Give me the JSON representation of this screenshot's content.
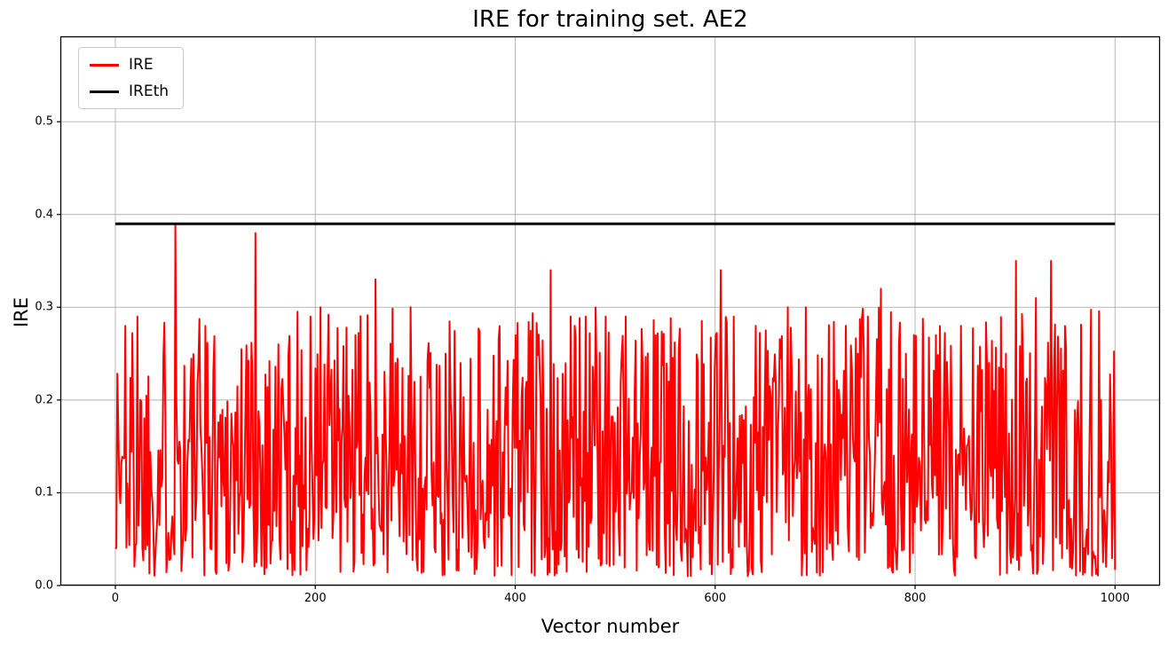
{
  "figure": {
    "title": "IRE for training set. AE2",
    "xlabel": "Vector number",
    "ylabel": "IRE"
  },
  "chart_data": {
    "type": "line",
    "title": "IRE for training set. AE2",
    "xlabel": "Vector number",
    "ylabel": "IRE",
    "xlim": [
      -55,
      1045
    ],
    "ylim": [
      0.0,
      0.592
    ],
    "xticks": [
      0,
      200,
      400,
      600,
      800,
      1000
    ],
    "yticks": [
      0.0,
      0.1,
      0.2,
      0.3,
      0.4,
      0.5
    ],
    "grid": true,
    "grid_color": "#b0b0b0",
    "axes_edge_color": "#000000",
    "legend": {
      "position": "upper-left",
      "entries": [
        {
          "label": "IRE",
          "color": "#ff0000"
        },
        {
          "label": "IREth",
          "color": "#000000"
        }
      ]
    },
    "series": [
      {
        "name": "IRE",
        "color": "#ff0000",
        "style": "noisy-line",
        "line_width": 2,
        "n_points": 1000,
        "x_range": [
          0,
          1000
        ],
        "baseline_min": 0.01,
        "baseline_max": 0.3,
        "approx_mean": 0.14,
        "seed": 1337,
        "notable_peaks": [
          {
            "x": 10,
            "y": 0.28
          },
          {
            "x": 22,
            "y": 0.29
          },
          {
            "x": 60,
            "y": 0.39
          },
          {
            "x": 90,
            "y": 0.28
          },
          {
            "x": 140,
            "y": 0.38
          },
          {
            "x": 163,
            "y": 0.26
          },
          {
            "x": 195,
            "y": 0.29
          },
          {
            "x": 205,
            "y": 0.3
          },
          {
            "x": 240,
            "y": 0.27
          },
          {
            "x": 260,
            "y": 0.33
          },
          {
            "x": 280,
            "y": 0.24
          },
          {
            "x": 330,
            "y": 0.25
          },
          {
            "x": 345,
            "y": 0.24
          },
          {
            "x": 400,
            "y": 0.27
          },
          {
            "x": 435,
            "y": 0.34
          },
          {
            "x": 455,
            "y": 0.29
          },
          {
            "x": 470,
            "y": 0.29
          },
          {
            "x": 490,
            "y": 0.29
          },
          {
            "x": 510,
            "y": 0.29
          },
          {
            "x": 540,
            "y": 0.27
          },
          {
            "x": 605,
            "y": 0.34
          },
          {
            "x": 618,
            "y": 0.29
          },
          {
            "x": 640,
            "y": 0.28
          },
          {
            "x": 672,
            "y": 0.3
          },
          {
            "x": 690,
            "y": 0.3
          },
          {
            "x": 730,
            "y": 0.28
          },
          {
            "x": 752,
            "y": 0.29
          },
          {
            "x": 765,
            "y": 0.32
          },
          {
            "x": 790,
            "y": 0.25
          },
          {
            "x": 820,
            "y": 0.27
          },
          {
            "x": 845,
            "y": 0.28
          },
          {
            "x": 873,
            "y": 0.24
          },
          {
            "x": 900,
            "y": 0.35
          },
          {
            "x": 920,
            "y": 0.31
          },
          {
            "x": 935,
            "y": 0.35
          },
          {
            "x": 985,
            "y": 0.2
          }
        ]
      },
      {
        "name": "IREth",
        "color": "#000000",
        "style": "constant-line",
        "line_width": 3,
        "value": 0.39
      }
    ]
  }
}
